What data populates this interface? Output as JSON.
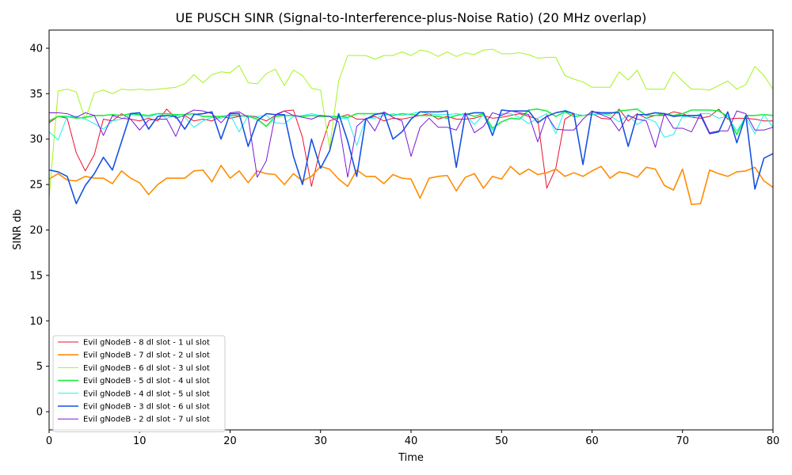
{
  "chart_data": {
    "type": "line",
    "title": "UE PUSCH SINR (Signal-to-Interference-plus-Noise Ratio) (20 MHz overlap)",
    "xlabel": "Time",
    "ylabel": "SINR db",
    "xlim": [
      0,
      80
    ],
    "ylim": [
      -2,
      42
    ],
    "xticks": [
      0,
      10,
      20,
      30,
      40,
      50,
      60,
      70,
      80
    ],
    "yticks": [
      0,
      5,
      10,
      15,
      20,
      25,
      30,
      35,
      40
    ],
    "grid": false,
    "legend_position": "lower-left",
    "x": [
      0,
      1,
      2,
      3,
      4,
      5,
      6,
      7,
      8,
      9,
      10,
      11,
      12,
      13,
      14,
      15,
      16,
      17,
      18,
      19,
      20,
      21,
      22,
      23,
      24,
      25,
      26,
      27,
      28,
      29,
      30,
      31,
      32,
      33,
      34,
      35,
      36,
      37,
      38,
      39,
      40,
      41,
      42,
      43,
      44,
      45,
      46,
      47,
      48,
      49,
      50,
      51,
      52,
      53,
      54,
      55,
      56,
      57,
      58,
      59,
      60,
      61,
      62,
      63,
      64,
      65,
      66,
      67,
      68,
      69,
      70,
      71,
      72,
      73,
      74,
      75,
      76,
      77,
      78,
      79,
      80
    ],
    "series": [
      {
        "name": "Evil gNodeB - 8 dl slot - 1 ul slot",
        "color": "#ee0f2d",
        "values": [
          31.8,
          32.5,
          32.3,
          28.5,
          26.5,
          28.3,
          32.2,
          32.0,
          32.8,
          32.2,
          32.0,
          32.3,
          32.0,
          33.3,
          32.3,
          32.6,
          32.0,
          32.2,
          32.0,
          32.5,
          32.3,
          32.5,
          32.6,
          32.4,
          32.0,
          32.6,
          33.1,
          33.2,
          30.2,
          24.8,
          29.0,
          32.0,
          32.4,
          32.7,
          32.2,
          32.2,
          32.5,
          32.0,
          32.3,
          32.2,
          32.4,
          32.6,
          32.8,
          32.2,
          32.5,
          32.2,
          32.2,
          32.3,
          32.6,
          32.3,
          32.4,
          32.6,
          32.8,
          32.5,
          32.2,
          24.6,
          26.8,
          32.2,
          32.8,
          32.6,
          32.8,
          32.3,
          32.2,
          33.3,
          32.0,
          32.8,
          32.3,
          32.6,
          32.6,
          33.0,
          32.8,
          32.4,
          32.3,
          32.5,
          33.3,
          32.2,
          32.3,
          32.3,
          32.2,
          32.0,
          32.0
        ]
      },
      {
        "name": "Evil gNodeB - 7 dl slot - 2 ul slot",
        "color": "#ff8c00",
        "values": [
          25.6,
          26.2,
          25.5,
          25.4,
          25.9,
          25.7,
          25.7,
          25.1,
          26.5,
          25.7,
          25.2,
          23.9,
          25.0,
          25.7,
          25.7,
          25.7,
          26.5,
          26.6,
          25.3,
          27.1,
          25.7,
          26.5,
          25.2,
          26.5,
          26.2,
          26.1,
          25.0,
          26.2,
          25.4,
          25.9,
          27.0,
          26.7,
          25.6,
          24.8,
          26.6,
          25.9,
          25.9,
          25.1,
          26.1,
          25.7,
          25.6,
          23.5,
          25.7,
          25.9,
          26.0,
          24.3,
          25.8,
          26.2,
          24.6,
          25.9,
          25.6,
          27.0,
          26.1,
          26.7,
          26.1,
          26.3,
          26.7,
          25.9,
          26.3,
          25.9,
          26.5,
          27.0,
          25.7,
          26.4,
          26.2,
          25.8,
          26.9,
          26.7,
          24.9,
          24.4,
          26.7,
          22.8,
          22.9,
          26.6,
          26.2,
          25.9,
          26.4,
          26.5,
          26.9,
          25.4,
          24.7
        ]
      },
      {
        "name": "Evil gNodeB - 6 dl slot - 3 ul slot",
        "color": "#a3f51c",
        "values": [
          23.5,
          35.3,
          35.5,
          35.2,
          32.2,
          35.1,
          35.4,
          35.0,
          35.5,
          35.4,
          35.5,
          35.4,
          35.5,
          35.6,
          35.7,
          36.1,
          37.1,
          36.2,
          37.1,
          37.4,
          37.3,
          38.1,
          36.2,
          36.1,
          37.2,
          37.7,
          35.9,
          37.6,
          37.0,
          35.6,
          35.4,
          29.0,
          36.4,
          39.2,
          39.2,
          39.2,
          38.8,
          39.2,
          39.2,
          39.6,
          39.2,
          39.8,
          39.6,
          39.1,
          39.6,
          39.1,
          39.5,
          39.3,
          39.8,
          39.9,
          39.4,
          39.4,
          39.5,
          39.3,
          38.9,
          39.0,
          39.0,
          37.0,
          36.6,
          36.3,
          35.7,
          35.7,
          35.7,
          37.4,
          36.5,
          37.6,
          35.5,
          35.5,
          35.5,
          37.4,
          36.4,
          35.5,
          35.5,
          35.4,
          35.9,
          36.4,
          35.5,
          36.0,
          38.0,
          37.0,
          35.5
        ]
      },
      {
        "name": "Evil gNodeB - 5 dl slot - 4 ul slot",
        "color": "#1aeb3f",
        "values": [
          32.0,
          32.5,
          32.5,
          32.3,
          32.4,
          32.6,
          32.6,
          32.7,
          32.6,
          32.8,
          32.7,
          32.6,
          32.8,
          32.8,
          32.7,
          32.7,
          32.8,
          32.5,
          32.5,
          32.5,
          32.6,
          32.6,
          32.5,
          32.2,
          31.4,
          32.5,
          32.6,
          32.6,
          32.5,
          32.6,
          32.5,
          32.5,
          32.5,
          32.4,
          32.8,
          32.8,
          32.8,
          32.8,
          32.6,
          32.8,
          32.7,
          32.6,
          32.6,
          32.5,
          32.3,
          32.6,
          32.8,
          32.5,
          32.8,
          31.2,
          31.9,
          32.3,
          32.2,
          33.2,
          33.3,
          33.1,
          32.5,
          33.0,
          32.5,
          32.6,
          32.7,
          32.8,
          32.8,
          33.1,
          33.2,
          33.3,
          32.6,
          32.6,
          32.8,
          32.6,
          32.8,
          33.2,
          33.2,
          33.2,
          33.1,
          32.5,
          30.5,
          32.6,
          32.6,
          32.7,
          32.6
        ]
      },
      {
        "name": "Evil gNodeB - 4 dl slot - 5 ul slot",
        "color": "#19f0ee",
        "values": [
          30.8,
          29.9,
          32.5,
          32.5,
          32.2,
          31.7,
          31.1,
          32.0,
          32.2,
          32.7,
          32.6,
          32.4,
          32.8,
          32.3,
          32.6,
          32.4,
          31.3,
          32.0,
          32.4,
          32.3,
          32.7,
          30.8,
          32.6,
          32.5,
          32.6,
          31.8,
          31.7,
          32.5,
          32.6,
          32.8,
          32.6,
          32.5,
          32.3,
          32.3,
          29.3,
          32.3,
          32.3,
          32.6,
          32.8,
          32.6,
          32.8,
          33.0,
          32.8,
          32.7,
          32.7,
          32.8,
          32.7,
          31.6,
          32.7,
          30.9,
          32.8,
          32.8,
          32.4,
          31.7,
          32.3,
          32.8,
          30.6,
          33.2,
          32.8,
          32.6,
          32.7,
          32.8,
          32.6,
          31.9,
          32.7,
          31.6,
          32.3,
          31.9,
          30.2,
          30.5,
          32.5,
          32.4,
          32.8,
          32.8,
          32.3,
          32.5,
          30.9,
          32.4,
          30.6,
          32.7,
          31.3
        ]
      },
      {
        "name": "Evil gNodeB - 3 dl slot - 6 ul slot",
        "color": "#1652e0",
        "values": [
          26.6,
          26.4,
          25.9,
          22.9,
          24.9,
          26.2,
          28.0,
          26.6,
          29.7,
          32.8,
          32.9,
          31.1,
          32.5,
          32.6,
          32.5,
          31.1,
          32.7,
          32.8,
          33.0,
          30.0,
          32.8,
          32.8,
          29.2,
          32.0,
          32.8,
          32.7,
          32.7,
          28.1,
          25.0,
          30.0,
          26.8,
          28.7,
          32.8,
          29.8,
          25.9,
          32.2,
          32.7,
          32.9,
          30.0,
          30.8,
          32.2,
          33.0,
          33.0,
          33.0,
          33.1,
          26.9,
          32.7,
          32.9,
          32.9,
          30.4,
          33.2,
          33.1,
          33.1,
          33.1,
          31.8,
          32.5,
          32.9,
          33.1,
          32.8,
          27.2,
          33.0,
          32.9,
          32.9,
          32.9,
          29.2,
          32.7,
          32.7,
          32.9,
          32.8,
          32.5,
          32.6,
          32.6,
          32.6,
          30.6,
          30.8,
          33.0,
          29.6,
          32.6,
          24.5,
          27.9,
          28.4
        ]
      },
      {
        "name": "Evil gNodeB - 2 dl slot - 7 ul slot",
        "color": "#7b18d6",
        "values": [
          32.9,
          32.9,
          32.8,
          32.4,
          32.9,
          32.6,
          30.4,
          32.6,
          32.3,
          32.2,
          31.0,
          32.1,
          32.2,
          32.2,
          30.3,
          32.7,
          33.2,
          33.1,
          32.8,
          31.8,
          32.9,
          33.0,
          32.4,
          25.8,
          27.6,
          32.7,
          33.1,
          32.6,
          32.4,
          32.2,
          32.6,
          32.5,
          31.9,
          25.8,
          31.4,
          32.3,
          30.9,
          33.0,
          32.4,
          32.0,
          28.1,
          31.3,
          32.3,
          31.3,
          31.3,
          31.0,
          32.9,
          30.7,
          31.4,
          32.9,
          32.6,
          33.1,
          32.9,
          32.7,
          29.7,
          32.6,
          31.1,
          31.0,
          31.0,
          32.2,
          33.1,
          32.7,
          32.3,
          30.9,
          32.6,
          32.2,
          32.0,
          29.1,
          32.8,
          31.2,
          31.2,
          30.8,
          32.8,
          30.7,
          30.9,
          30.9,
          33.1,
          32.8,
          31.0,
          31.0,
          31.3
        ]
      }
    ]
  }
}
